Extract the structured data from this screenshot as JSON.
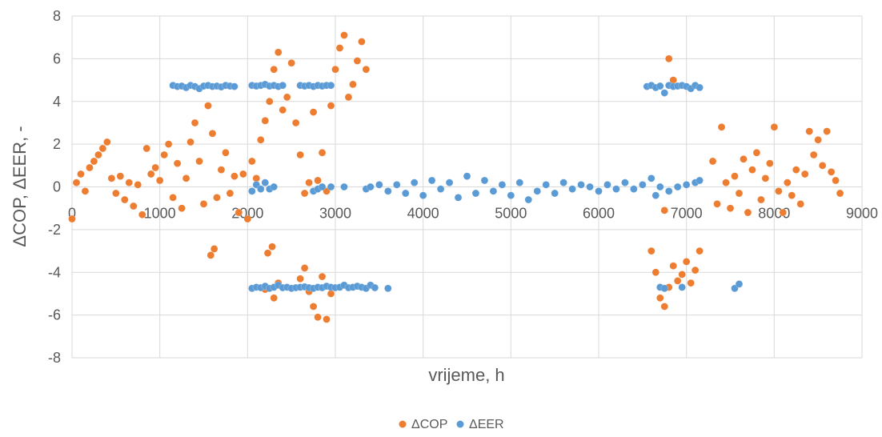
{
  "chart_data": {
    "type": "scatter",
    "xlabel": "vrijeme, h",
    "ylabel": "ΔCOP, ΔEER, -",
    "xlim": [
      0,
      9000
    ],
    "ylim": [
      -8,
      8
    ],
    "x_ticks": [
      "0",
      "1000",
      "2000",
      "3000",
      "4000",
      "5000",
      "6000",
      "7000",
      "8000",
      "9000"
    ],
    "y_ticks": [
      "-8",
      "-6",
      "-4",
      "-2",
      "0",
      "2",
      "4",
      "6",
      "8"
    ],
    "grid": true,
    "legend_position": "bottom",
    "series": [
      {
        "name": "ΔCOP",
        "color": "#ED7D31",
        "x": [
          0,
          50,
          100,
          150,
          200,
          250,
          300,
          350,
          400,
          450,
          500,
          550,
          600,
          650,
          700,
          750,
          800,
          850,
          900,
          950,
          1000,
          1050,
          1100,
          1150,
          1200,
          1250,
          1300,
          1350,
          1400,
          1450,
          1500,
          1550,
          1600,
          1650,
          1700,
          1750,
          1800,
          1850,
          1900,
          1950,
          2000,
          2050,
          2100,
          2150,
          2200,
          2250,
          2300,
          2350,
          2400,
          2450,
          2500,
          2550,
          2600,
          2650,
          2700,
          2750,
          2800,
          2850,
          2900,
          2950,
          3000,
          3050,
          3100,
          3150,
          3200,
          3250,
          3300,
          3350,
          1580,
          1620,
          2230,
          2280,
          2200,
          2300,
          2350,
          2600,
          2650,
          2700,
          2750,
          2800,
          2850,
          2900,
          2950,
          6600,
          6650,
          6700,
          6750,
          6800,
          6850,
          6900,
          6950,
          7000,
          7050,
          7100,
          7150,
          6800,
          6850,
          6750,
          7300,
          7350,
          7400,
          7450,
          7500,
          7550,
          7600,
          7650,
          7700,
          7750,
          7800,
          7850,
          7900,
          7950,
          8000,
          8050,
          8100,
          8150,
          8200,
          8250,
          8300,
          8350,
          8400,
          8450,
          8500,
          8550,
          8600,
          8650,
          8700,
          8750
        ],
        "y": [
          -1.5,
          0.2,
          0.6,
          -0.2,
          0.9,
          1.2,
          1.5,
          1.8,
          2.1,
          0.4,
          -0.3,
          0.5,
          -0.6,
          0.2,
          -0.9,
          0.1,
          -1.3,
          1.8,
          0.6,
          0.9,
          0.3,
          1.5,
          2.0,
          -0.5,
          1.1,
          -1.0,
          0.4,
          2.1,
          3.0,
          1.2,
          -0.8,
          3.8,
          2.5,
          -0.5,
          0.8,
          1.6,
          -0.3,
          0.5,
          -1.2,
          0.6,
          -1.5,
          1.2,
          0.4,
          2.2,
          3.1,
          4.0,
          5.5,
          6.3,
          3.6,
          4.2,
          5.8,
          3.0,
          1.5,
          -0.3,
          0.2,
          3.5,
          0.3,
          1.6,
          -0.2,
          3.8,
          5.5,
          6.5,
          7.1,
          4.2,
          4.8,
          5.9,
          6.8,
          5.5,
          -3.2,
          -2.9,
          -3.1,
          -2.8,
          -4.8,
          -5.2,
          -4.5,
          -4.3,
          -3.8,
          -4.9,
          -5.6,
          -6.1,
          -4.2,
          -6.2,
          -5.0,
          -3.0,
          -4.0,
          -5.2,
          -5.6,
          -4.7,
          -3.7,
          -4.4,
          -4.1,
          -3.5,
          -4.5,
          -3.9,
          -3.0,
          6.0,
          5.0,
          -1.1,
          1.2,
          -0.8,
          2.8,
          0.2,
          -1.0,
          0.5,
          -0.3,
          1.3,
          -1.2,
          0.8,
          1.6,
          -0.6,
          0.4,
          1.1,
          2.8,
          -0.2,
          -1.2,
          0.2,
          -0.4,
          0.8,
          -0.8,
          0.6,
          2.6,
          1.5,
          2.2,
          1.0,
          2.6,
          0.7,
          0.3,
          -0.3
        ]
      },
      {
        "name": "ΔEER",
        "color": "#5B9BD5",
        "x": [
          1150,
          1200,
          1250,
          1300,
          1350,
          1400,
          1450,
          1500,
          1550,
          1600,
          1650,
          1700,
          1750,
          1800,
          1850,
          2050,
          2100,
          2150,
          2200,
          2250,
          2300,
          2350,
          2400,
          2600,
          2650,
          2700,
          2750,
          2800,
          2850,
          2900,
          2950,
          6550,
          6600,
          6650,
          6700,
          6750,
          6800,
          6850,
          6900,
          6950,
          7000,
          7050,
          7100,
          7150,
          2050,
          2100,
          2150,
          2200,
          2250,
          2300,
          2350,
          2400,
          2450,
          2500,
          2550,
          2600,
          2650,
          2700,
          2750,
          2800,
          2850,
          2900,
          2950,
          3000,
          3050,
          3100,
          3150,
          3200,
          3250,
          3300,
          3350,
          3400,
          3450,
          3600,
          6700,
          6750,
          6950,
          7550,
          7600,
          2050,
          2100,
          2150,
          2200,
          2250,
          2300,
          2750,
          2800,
          2850,
          2950,
          3100,
          3350,
          3400,
          3500,
          3600,
          3700,
          3800,
          3900,
          4000,
          4100,
          4200,
          4300,
          4400,
          4500,
          4600,
          4700,
          4800,
          4900,
          5000,
          5100,
          5200,
          5300,
          5400,
          5500,
          5600,
          5700,
          5800,
          5900,
          6000,
          6100,
          6200,
          6300,
          6400,
          6500,
          6600,
          6650,
          6700,
          6800,
          6900,
          7000,
          7100,
          7150
        ],
        "y": [
          4.75,
          4.7,
          4.72,
          4.65,
          4.75,
          4.7,
          4.6,
          4.72,
          4.75,
          4.7,
          4.72,
          4.68,
          4.75,
          4.72,
          4.7,
          4.75,
          4.72,
          4.75,
          4.8,
          4.72,
          4.75,
          4.7,
          4.75,
          4.75,
          4.72,
          4.75,
          4.7,
          4.75,
          4.72,
          4.75,
          4.75,
          4.7,
          4.75,
          4.65,
          4.72,
          4.4,
          4.75,
          4.7,
          4.72,
          4.75,
          4.7,
          4.6,
          4.75,
          4.65,
          -4.75,
          -4.7,
          -4.72,
          -4.65,
          -4.75,
          -4.7,
          -4.6,
          -4.72,
          -4.7,
          -4.75,
          -4.72,
          -4.7,
          -4.68,
          -4.72,
          -4.75,
          -4.7,
          -4.72,
          -4.65,
          -4.7,
          -4.72,
          -4.7,
          -4.6,
          -4.72,
          -4.7,
          -4.65,
          -4.7,
          -4.75,
          -4.6,
          -4.72,
          -4.75,
          -4.7,
          -4.75,
          -4.7,
          -4.75,
          -4.55,
          -0.2,
          0.1,
          -0.1,
          0.2,
          -0.1,
          0.0,
          -0.2,
          -0.1,
          0.0,
          0.0,
          0.0,
          -0.1,
          0.0,
          0.1,
          -0.2,
          0.1,
          -0.3,
          0.2,
          -0.4,
          0.3,
          -0.1,
          0.2,
          -0.5,
          0.5,
          -0.3,
          0.3,
          -0.2,
          0.1,
          -0.4,
          0.2,
          -0.6,
          -0.2,
          0.1,
          -0.3,
          0.2,
          -0.1,
          0.1,
          0.0,
          -0.2,
          0.1,
          -0.1,
          0.2,
          -0.1,
          0.1,
          0.4,
          -0.4,
          0.0,
          -0.2,
          0.0,
          0.1,
          0.2,
          0.3
        ]
      }
    ]
  }
}
